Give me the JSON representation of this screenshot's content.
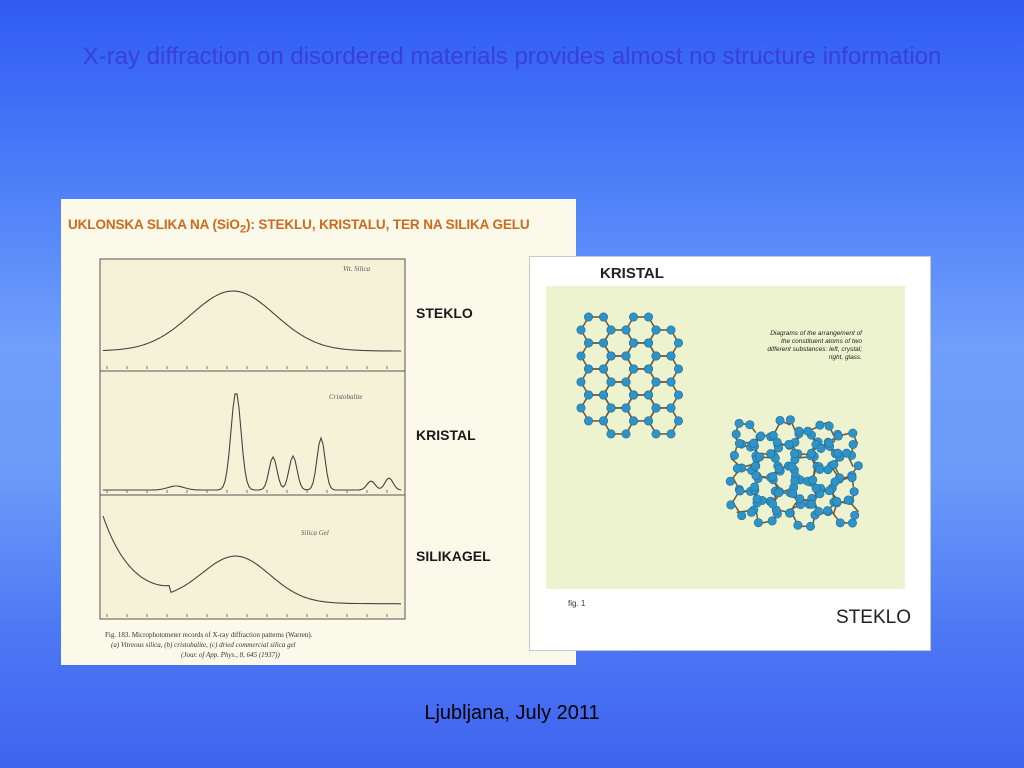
{
  "slide": {
    "title": "X-ray diffraction on disordered materials provides almost no structure information",
    "footer": "Ljubljana, July 2011"
  },
  "left_figure": {
    "heading_prefix": "UKLONSKA SLIKA NA (SiO",
    "heading_sub": "2",
    "heading_suffix": "): STEKLU, KRISTALU, TER NA SILIKA GELU",
    "labels": [
      "STEKLO",
      "KRISTAL",
      "SILIKAGEL"
    ],
    "pattern_tags": [
      "Vit. Silica",
      "Cristobalite",
      "Silica Gel"
    ],
    "caption": [
      "Fig. 183.  Microphotometer records of X-ray diffraction patterns (Warren).",
      "(a) Vitreous silica, (b) cristobalite, (c) dried commercial silica gel",
      "(Jour. of App. Phys., 8, 645 (1937))"
    ]
  },
  "right_figure": {
    "title_top": "KRISTAL",
    "title_bottom": "STEKLO",
    "note": "Diagrams of the arrangement of the constituent atoms of two different substances: left, crystal; right, glass.",
    "fig_label": "fig. 1"
  },
  "colors": {
    "title_text": "#3a3fd6",
    "heading_orange": "#cf6a1c",
    "atom_blue": "#2f93c8",
    "bond_brown": "#7a5a3a"
  }
}
